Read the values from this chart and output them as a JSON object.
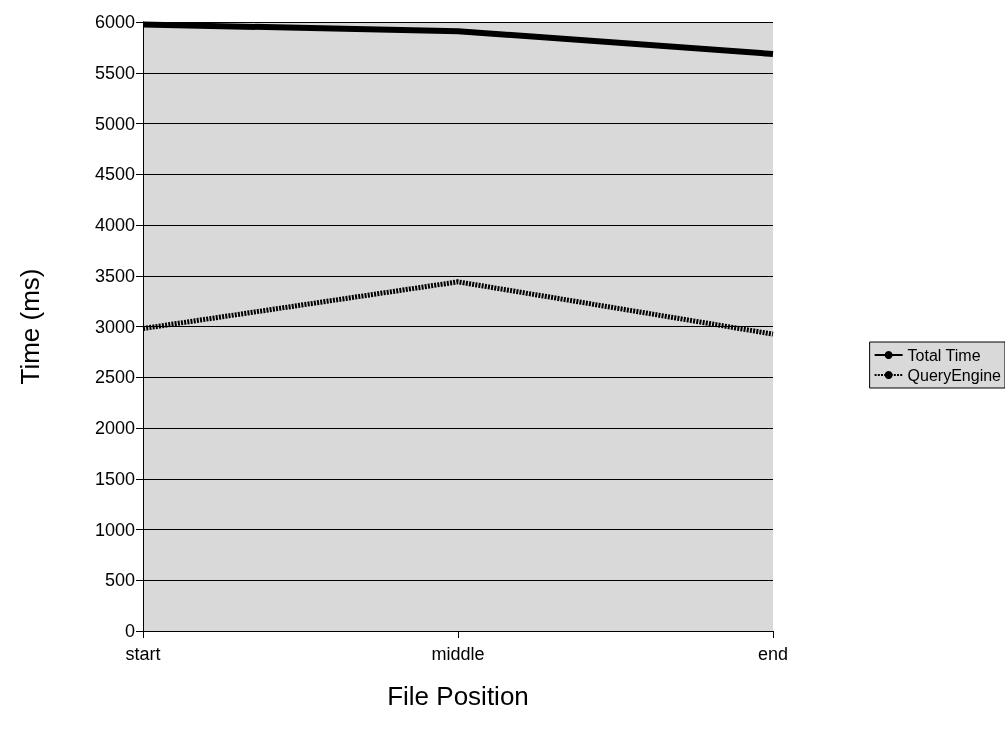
{
  "chart_data": {
    "type": "line",
    "xlabel": "File Position",
    "ylabel": "Time (ms)",
    "categories": [
      "start",
      "middle",
      "end"
    ],
    "series": [
      {
        "name": "Total Time",
        "color": "#000000",
        "values": [
          5975,
          5910,
          5685
        ],
        "line_style": "solid"
      },
      {
        "name": "QueryEngine",
        "color": "#000000",
        "values": [
          2980,
          3440,
          2925
        ],
        "line_style": "dotted"
      }
    ],
    "ylim": [
      0,
      6000
    ],
    "yticks": [
      0,
      500,
      1000,
      1500,
      2000,
      2500,
      3000,
      3500,
      4000,
      4500,
      5000,
      5500,
      6000
    ],
    "grid": "y",
    "legend": "right",
    "marker": "none"
  }
}
